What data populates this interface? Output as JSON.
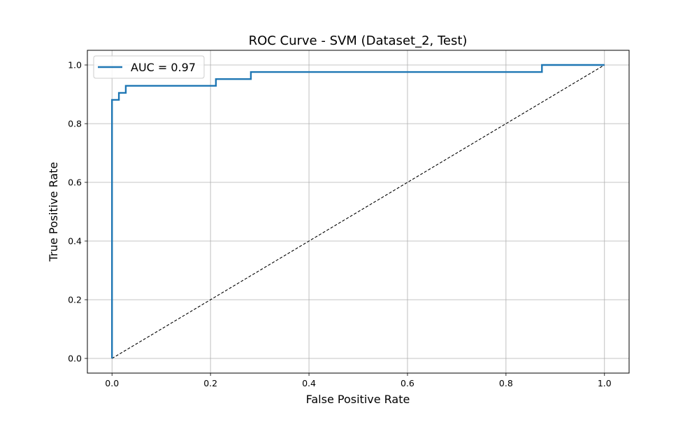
{
  "chart_data": {
    "type": "line",
    "title": "ROC Curve - SVM (Dataset_2, Test)",
    "xlabel": "False Positive Rate",
    "ylabel": "True Positive Rate",
    "xlim": [
      -0.05,
      1.05
    ],
    "ylim": [
      -0.05,
      1.05
    ],
    "x_ticks": [
      0.0,
      0.2,
      0.4,
      0.6,
      0.8,
      1.0
    ],
    "y_ticks": [
      0.0,
      0.2,
      0.4,
      0.6,
      0.8,
      1.0
    ],
    "x_tick_labels": [
      "0.0",
      "0.2",
      "0.4",
      "0.6",
      "0.8",
      "1.0"
    ],
    "y_tick_labels": [
      "0.0",
      "0.2",
      "0.4",
      "0.6",
      "0.8",
      "1.0"
    ],
    "grid": true,
    "legend_position": "upper-left",
    "series": [
      {
        "name": "AUC = 0.97",
        "color": "#1f77b4",
        "style": "solid",
        "x": [
          0.0,
          0.0,
          0.0,
          0.014,
          0.014,
          0.028,
          0.028,
          0.211,
          0.211,
          0.282,
          0.282,
          0.873,
          0.873,
          1.0
        ],
        "y": [
          0.0,
          0.0,
          0.881,
          0.881,
          0.905,
          0.905,
          0.929,
          0.929,
          0.952,
          0.952,
          0.976,
          0.976,
          1.0,
          1.0
        ]
      },
      {
        "color": "#000000",
        "style": "dashed",
        "x": [
          0.0,
          1.0
        ],
        "y": [
          0.0,
          1.0
        ]
      }
    ]
  }
}
